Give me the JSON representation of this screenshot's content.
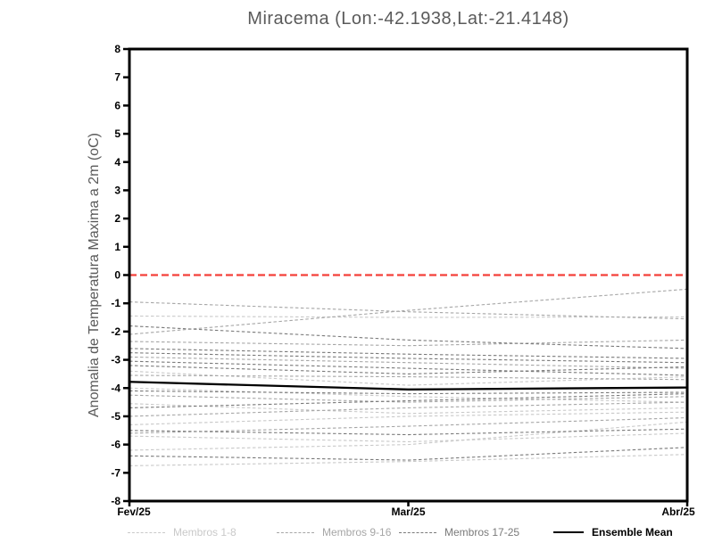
{
  "page": {
    "background": "#ffffff"
  },
  "chart_data": {
    "type": "line",
    "title": "Miracema (Lon:-42.1938,Lat:-21.4148)",
    "ylabel": "Anomalia de Temperatura Maxima a 2m (oC)",
    "xlabel": "",
    "x_categories": [
      "Fev/25",
      "Mar/25",
      "Abr/25"
    ],
    "ylim": [
      -8,
      8
    ],
    "y_tick_step": 1,
    "grid": false,
    "frame_color": "#000000",
    "zero_line": {
      "value": 0,
      "color": "#f4403a",
      "style": "dashed"
    },
    "series_groups": [
      {
        "name": "Membros 1-8",
        "color": "#c9c9c9",
        "style": "dashed",
        "members": [
          [
            -1.45,
            -1.5,
            -1.48
          ],
          [
            -3.4,
            -3.9,
            -3.6
          ],
          [
            -4.0,
            -4.3,
            -4.5
          ],
          [
            -4.55,
            -4.9,
            -4.7
          ],
          [
            -5.3,
            -5.0,
            -4.85
          ],
          [
            -5.7,
            -5.9,
            -5.6
          ],
          [
            -6.2,
            -6.0,
            -5.2
          ],
          [
            -6.75,
            -6.6,
            -6.35
          ]
        ]
      },
      {
        "name": "Membros 9-16",
        "color": "#a6a6a6",
        "style": "dashed",
        "members": [
          [
            -2.1,
            -1.25,
            -0.5
          ],
          [
            -0.95,
            -1.3,
            -1.55
          ],
          [
            -2.35,
            -2.5,
            -2.3
          ],
          [
            -2.9,
            -3.1,
            -3.3
          ],
          [
            -3.55,
            -3.6,
            -3.7
          ],
          [
            -4.25,
            -4.5,
            -4.3
          ],
          [
            -5.0,
            -4.7,
            -4.5
          ],
          [
            -5.6,
            -5.35,
            -5.05
          ]
        ]
      },
      {
        "name": "Membros 17-25",
        "color": "#7a7a7a",
        "style": "dashed",
        "members": [
          [
            -1.8,
            -2.3,
            -2.6
          ],
          [
            -2.6,
            -2.8,
            -2.95
          ],
          [
            -2.75,
            -2.95,
            -3.1
          ],
          [
            -3.05,
            -3.3,
            -3.55
          ],
          [
            -3.2,
            -3.5,
            -3.25
          ],
          [
            -4.1,
            -4.2,
            -4.15
          ],
          [
            -4.7,
            -4.45,
            -4.2
          ],
          [
            -5.5,
            -5.65,
            -5.45
          ],
          [
            -6.4,
            -6.55,
            -6.1
          ]
        ]
      }
    ],
    "ensemble_mean": {
      "name": "Ensemble Mean",
      "color": "#000000",
      "style": "solid",
      "values": [
        -3.78,
        -4.05,
        -3.98
      ]
    }
  },
  "legend": {
    "items": [
      {
        "label": "Membros 1-8",
        "color": "#c9c9c9",
        "style": "dashed"
      },
      {
        "label": "Membros 9-16",
        "color": "#a6a6a6",
        "style": "dashed"
      },
      {
        "label": "Membros 17-25",
        "color": "#7a7a7a",
        "style": "dashed"
      },
      {
        "label": "Ensemble Mean",
        "color": "#000000",
        "style": "solid"
      }
    ]
  }
}
